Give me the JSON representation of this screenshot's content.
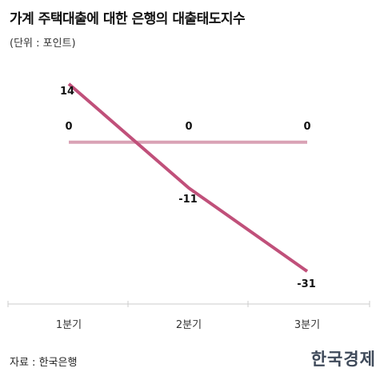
{
  "header": {
    "title": "가계 주택대출에 대한 은행의 대출태도지수",
    "unit": "(단위 : 포인트)"
  },
  "footer": {
    "source": "자료 : 한국은행",
    "logo": "한국경제"
  },
  "colors": {
    "main_line": "#c0507a",
    "zero_line": "#d9a2b5",
    "axis": "#cccccc",
    "text": "#111111"
  },
  "chart_data": {
    "type": "line",
    "title": "가계 주택대출에 대한 은행의 대출태도지수",
    "unit": "(단위 : 포인트)",
    "categories": [
      "1분기",
      "2분기",
      "3분기"
    ],
    "ylim": [
      -35,
      18
    ],
    "grid": false,
    "legend": "none",
    "series": [
      {
        "values": [
          14,
          -11,
          -31
        ],
        "labels": [
          "14",
          "-11",
          "-31"
        ]
      },
      {
        "values": [
          0,
          0,
          0
        ],
        "labels": [
          "0",
          "0",
          "0"
        ]
      }
    ]
  }
}
